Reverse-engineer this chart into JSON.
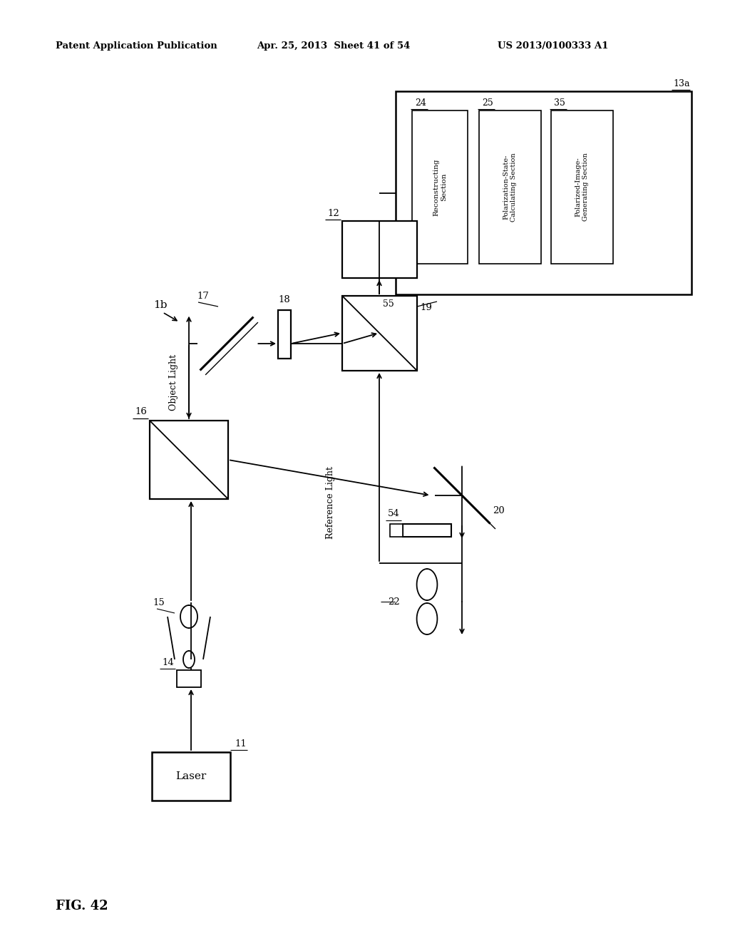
{
  "bg_color": "#ffffff",
  "header_left": "Patent Application Publication",
  "header_mid": "Apr. 25, 2013  Sheet 41 of 54",
  "header_right": "US 2013/0100333 A1",
  "fig_label": "FIG. 42",
  "system_label": "1b"
}
